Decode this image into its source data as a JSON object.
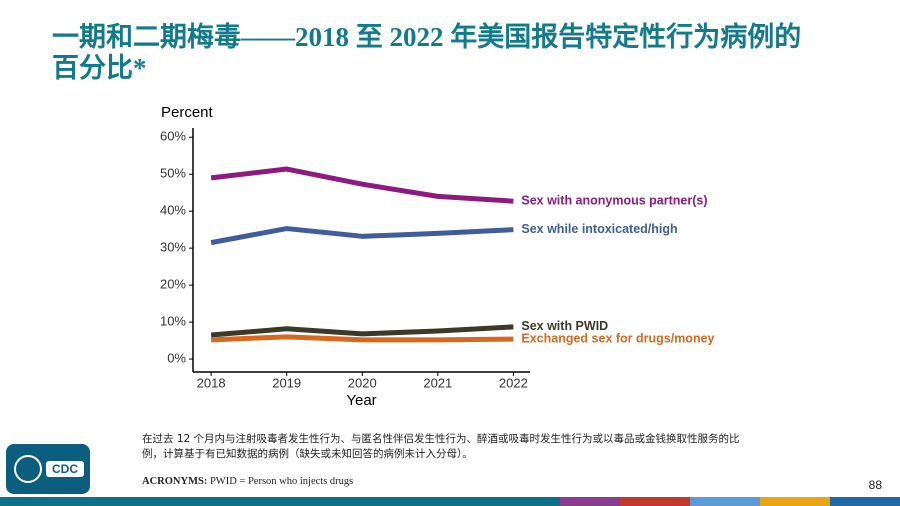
{
  "chart_data": {
    "type": "line",
    "title": "一期和二期梅毒——2018 至 2022 年美国报告特定性行为病例的百分比*",
    "y_label": "Percent",
    "x_label": "Year",
    "x": [
      2018,
      2019,
      2020,
      2021,
      2022
    ],
    "xlim": [
      2017.76,
      2022.22
    ],
    "xticks": [
      2018,
      2019,
      2020,
      2021,
      2022
    ],
    "ylim": [
      -3.5,
      62.5
    ],
    "yticks": [
      {
        "value": 0,
        "label": "0%"
      },
      {
        "value": 10,
        "label": "10%"
      },
      {
        "value": 20,
        "label": "20%"
      },
      {
        "value": 30,
        "label": "30%"
      },
      {
        "value": 40,
        "label": "40%"
      },
      {
        "value": 50,
        "label": "50%"
      },
      {
        "value": 60,
        "label": "60%"
      }
    ],
    "grid": false,
    "series": [
      {
        "name": "Sex with anonymous partner(s)",
        "color": "#8c1a7f",
        "values": [
          49,
          51.4,
          47.3,
          44,
          42.7
        ]
      },
      {
        "name": "Sex while intoxicated/high",
        "color": "#3f5d9b",
        "values": [
          31.5,
          35.3,
          33.2,
          34,
          35
        ]
      },
      {
        "name": "Sex with PWID",
        "color": "#3b3a28",
        "values": [
          6.5,
          8.2,
          6.8,
          7.6,
          8.7
        ]
      },
      {
        "name": "Exchanged sex for drugs/money",
        "color": "#d4691f",
        "values": [
          5.2,
          6,
          5.2,
          5.2,
          5.4
        ]
      }
    ]
  },
  "footnote": "在过去 12 个月内与注射吸毒者发生性行为、与匿名性伴侣发生性行为、醉酒或吸毒时发生性行为或以毒品或金钱换取性服务的比例，计算基于有已知数据的病例（缺失或未知回答的病例未计入分母）。",
  "acronyms": {
    "label": "ACRONYMS:",
    "text": "PWID = Person who injects drugs"
  },
  "page_number": "88",
  "logo_text": "CDC"
}
